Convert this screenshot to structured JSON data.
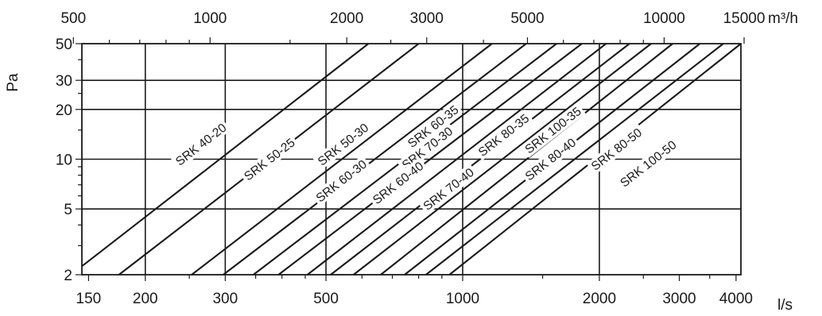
{
  "chart_data": {
    "type": "line",
    "title": "",
    "x_scale": "log",
    "y_scale": "log",
    "xlabel": "l/s",
    "x2label": "m³/h",
    "ylabel": "Pa",
    "xlim": [
      145,
      4100
    ],
    "x2lim": [
      522,
      14760
    ],
    "ylim": [
      2,
      50
    ],
    "x_ticks": [
      150,
      200,
      300,
      500,
      1000,
      2000,
      3000,
      4000
    ],
    "x2_ticks": [
      500,
      1000,
      2000,
      3000,
      5000,
      10000,
      15000
    ],
    "y_ticks": [
      2,
      5,
      10,
      20,
      30,
      50
    ],
    "grid": true,
    "series": [
      {
        "name": "SRK 40-20",
        "x": [
          145,
          620
        ],
        "y": [
          2.25,
          50
        ]
      },
      {
        "name": "SRK 50-25",
        "x": [
          175,
          800
        ],
        "y": [
          2,
          50
        ]
      },
      {
        "name": "SRK 50-30",
        "x": [
          253,
          1160
        ],
        "y": [
          2,
          50
        ]
      },
      {
        "name": "SRK 60-30",
        "x": [
          297,
          1380
        ],
        "y": [
          2,
          50
        ]
      },
      {
        "name": "SRK 60-35",
        "x": [
          346,
          1610
        ],
        "y": [
          2,
          50
        ]
      },
      {
        "name": "SRK 70-30",
        "x": [
          393,
          1830
        ],
        "y": [
          2,
          50
        ]
      },
      {
        "name": "SRK 60-40",
        "x": [
          455,
          2070
        ],
        "y": [
          2,
          50
        ]
      },
      {
        "name": "SRK 80-35",
        "x": [
          512,
          2330
        ],
        "y": [
          2,
          50
        ]
      },
      {
        "name": "SRK 70-40",
        "x": [
          575,
          2600
        ],
        "y": [
          2,
          50
        ]
      },
      {
        "name": "SRK 100-35",
        "x": [
          660,
          2900
        ],
        "y": [
          2,
          50
        ]
      },
      {
        "name": "SRK 80-40",
        "x": [
          745,
          3330
        ],
        "y": [
          2,
          50
        ]
      },
      {
        "name": "SRK 80-50",
        "x": [
          830,
          3750
        ],
        "y": [
          2,
          50
        ]
      },
      {
        "name": "SRK 100-50",
        "x": [
          935,
          4100
        ],
        "y": [
          2,
          50
        ]
      }
    ],
    "annotations": [
      {
        "text": "SRK 40-20",
        "x": 265,
        "y": 12.3
      },
      {
        "text": "SRK 50-25",
        "x": 375,
        "y": 10.0
      },
      {
        "text": "SRK 50-30",
        "x": 545,
        "y": 12.3
      },
      {
        "text": "SRK 60-35",
        "x": 860,
        "y": 15.8
      },
      {
        "text": "SRK 60-30",
        "x": 540,
        "y": 7.4
      },
      {
        "text": "SRK 70-30",
        "x": 835,
        "y": 11.7
      },
      {
        "text": "SRK 80-35",
        "x": 1230,
        "y": 14.0
      },
      {
        "text": "SRK 60-40",
        "x": 720,
        "y": 7.2
      },
      {
        "text": "SRK 100-35",
        "x": 1580,
        "y": 15.0
      },
      {
        "text": "SRK 70-40",
        "x": 930,
        "y": 6.6
      },
      {
        "text": "SRK 80-40",
        "x": 1560,
        "y": 10.0
      },
      {
        "text": "SRK 80-50",
        "x": 2180,
        "y": 11.5
      },
      {
        "text": "SRK 100-50",
        "x": 2560,
        "y": 9.4
      }
    ]
  }
}
